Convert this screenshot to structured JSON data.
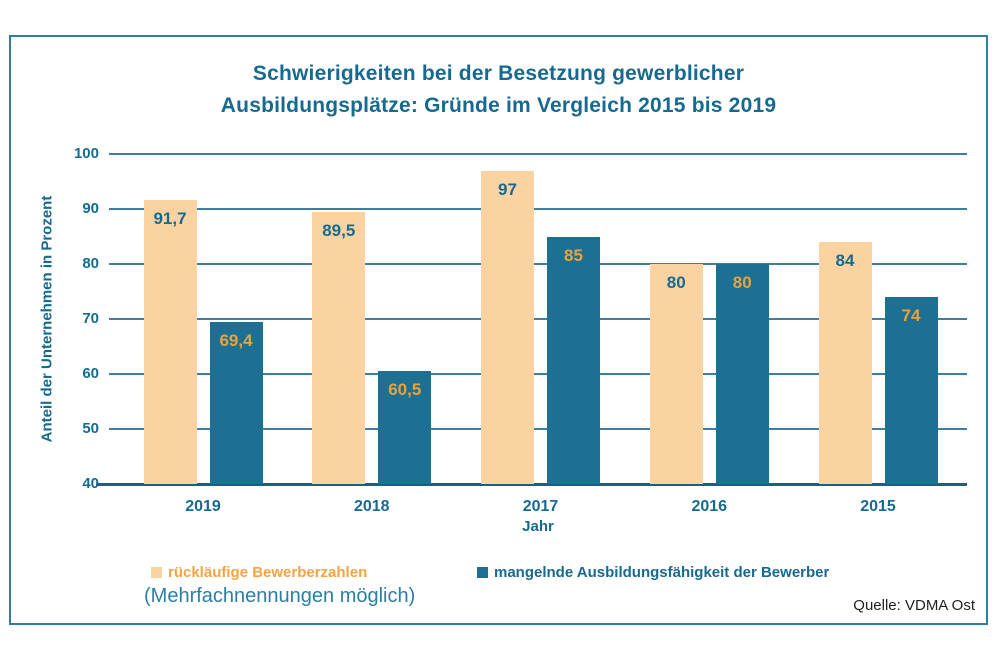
{
  "chart": {
    "title_line1": "Schwierigkeiten bei der Besetzung gewerblicher",
    "title_line2": "Ausbildungsplätze: Gründe im Vergleich 2015 bis 2019",
    "note": "(Mehrfachnennungen möglich)",
    "source": "Quelle: VDMA Ost",
    "colors": {
      "accent_teal": "#176A8F",
      "bar_orange": "#FBD3A3",
      "bar_teal": "#1E7092",
      "bar_label_gold": "#E8A33C",
      "legend_orange_text": "#F5A343",
      "grid": "#3E7F9E",
      "axis": "#0F6288",
      "frame_border": "#2E7E9E"
    }
  },
  "chart_data": {
    "type": "bar",
    "title": "Schwierigkeiten bei der Besetzung gewerblicher Ausbildungsplätze: Gründe im Vergleich 2015 bis 2019",
    "categories": [
      "2019",
      "2018",
      "2017",
      "2016",
      "2015"
    ],
    "series": [
      {
        "name": "rückläufige Bewerberzahlen",
        "values": [
          91.7,
          89.5,
          97,
          80,
          84
        ],
        "labels": [
          "91,7",
          "89,5",
          "97",
          "80",
          "84"
        ],
        "color": "#FBD3A3",
        "label_color": "#176A8F",
        "legend_text_color": "#F5A343"
      },
      {
        "name": "mangelnde Ausbildungsfähigkeit der Bewerber",
        "values": [
          69.4,
          60.5,
          85,
          80,
          74
        ],
        "labels": [
          "69,4",
          "60,5",
          "85",
          "80",
          "74"
        ],
        "color": "#1E7092",
        "label_color": "#E8A33C",
        "legend_text_color": "#176A8F"
      }
    ],
    "xlabel": "Jahr",
    "ylabel": "Anteil der Unternehmen in Prozent",
    "ylim": [
      40,
      100
    ],
    "yticks": [
      100,
      90,
      80,
      70,
      60,
      50,
      40
    ],
    "grid": true,
    "legend_position": "bottom"
  }
}
